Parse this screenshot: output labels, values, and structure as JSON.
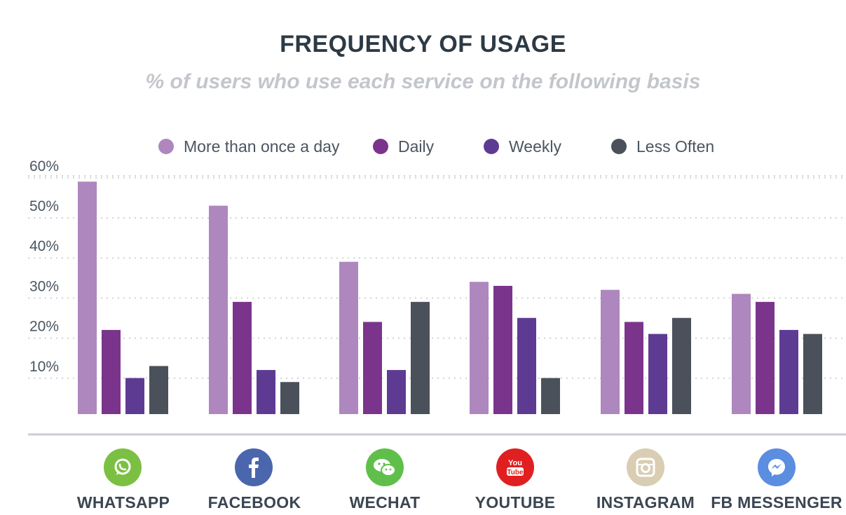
{
  "chart_data": {
    "type": "bar",
    "title": "FREQUENCY OF USAGE",
    "subtitle": "% of users who use each service on the following basis",
    "categories": [
      "WHATSAPP",
      "FACEBOOK",
      "WECHAT",
      "YOUTUBE",
      "INSTAGRAM",
      "FB MESSENGER"
    ],
    "category_icons": [
      "whatsapp-icon",
      "facebook-icon",
      "wechat-icon",
      "youtube-icon",
      "instagram-icon",
      "fb-messenger-icon"
    ],
    "icon_colors": [
      "#7bc043",
      "#4a66ad",
      "#5fbf4a",
      "#e02020",
      "#d9cdb3",
      "#5b8de0"
    ],
    "series": [
      {
        "name": "More than once a day",
        "color": "#ad87be",
        "values": [
          58,
          52,
          38,
          33,
          31,
          30
        ]
      },
      {
        "name": "Daily",
        "color": "#7b348c",
        "values": [
          21,
          28,
          23,
          32,
          23,
          28
        ]
      },
      {
        "name": "Weekly",
        "color": "#5e3b93",
        "values": [
          9,
          11,
          11,
          24,
          20,
          21
        ]
      },
      {
        "name": "Less Often",
        "color": "#4b515a",
        "values": [
          12,
          8,
          28,
          9,
          24,
          20
        ]
      }
    ],
    "y_ticks": [
      "10%",
      "20%",
      "30%",
      "40%",
      "50%",
      "60%"
    ],
    "y_tick_values": [
      10,
      20,
      30,
      40,
      50,
      60
    ],
    "ylim": [
      0,
      60
    ],
    "grid": true,
    "legend_position": "top"
  }
}
